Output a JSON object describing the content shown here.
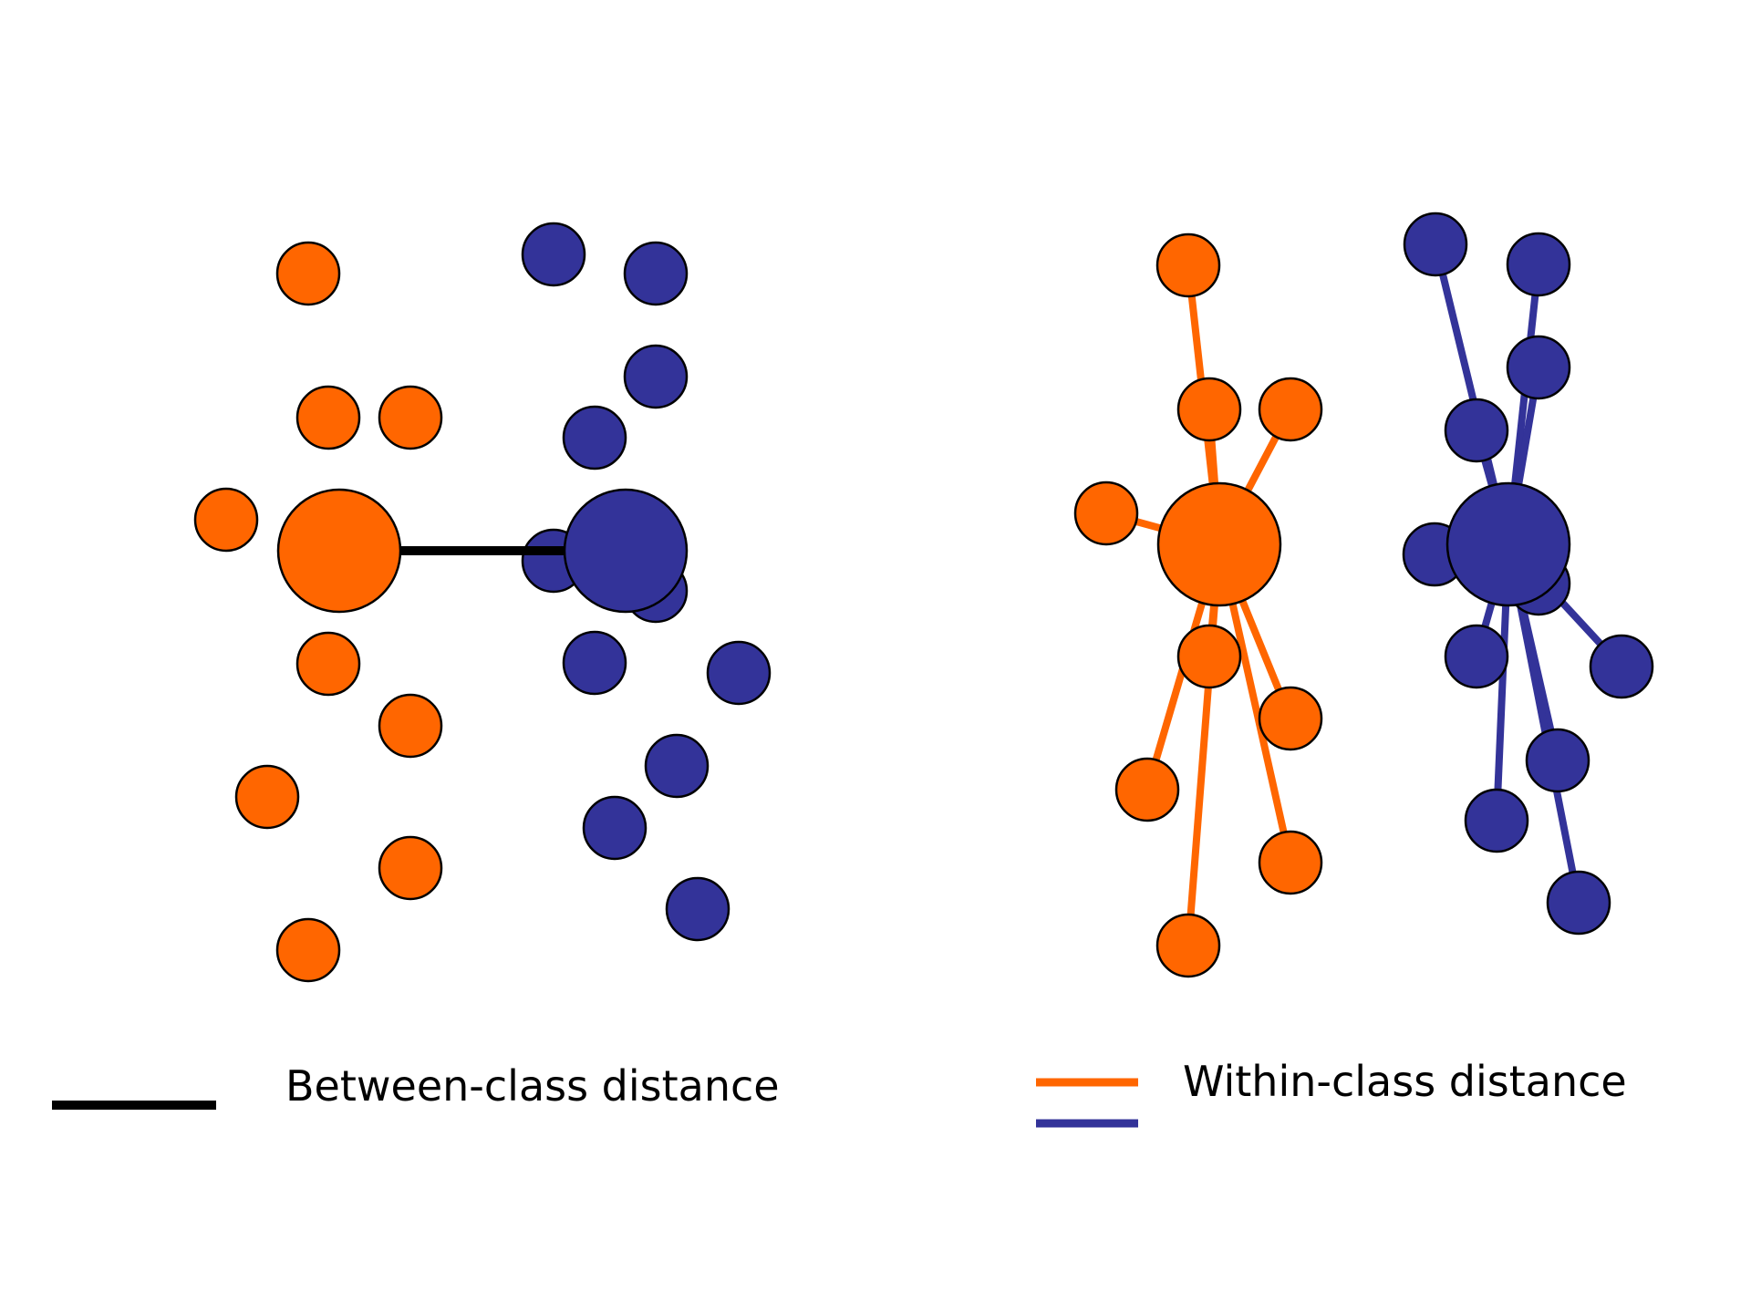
{
  "colors": {
    "orange": "#ff6600",
    "blue": "#333399",
    "outline": "#000000",
    "between_line": "#000000"
  },
  "legend": {
    "between_label": "Between-class distance",
    "within_label": "Within-class distance"
  }
}
